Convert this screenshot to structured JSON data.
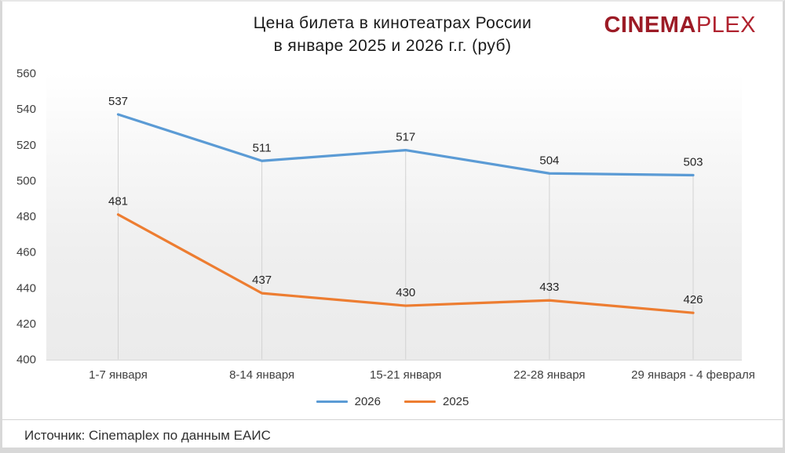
{
  "title": {
    "line1": "Цена билета в кинотеатрах России",
    "line2": "в январе 2025 и 2026 г.г. (руб)"
  },
  "logo": {
    "part1": "CINEMA",
    "part2": "PLEX",
    "color1": "#9c1b26",
    "color2": "#b0232f"
  },
  "source": "Источник: Cinemaplex по данным ЕАИС",
  "chart_data": {
    "type": "line",
    "title": "Цена билета в кинотеатрах России в январе 2025 и 2026 г.г. (руб)",
    "categories": [
      "1-7 января",
      "8-14 января",
      "15-21 января",
      "22-28 января",
      "29 января - 4 февраля"
    ],
    "series": [
      {
        "name": "2026",
        "color": "#5B9BD5",
        "values": [
          537,
          511,
          517,
          504,
          503
        ]
      },
      {
        "name": "2025",
        "color": "#ED7D31",
        "values": [
          481,
          437,
          430,
          433,
          426
        ]
      }
    ],
    "xlabel": "",
    "ylabel": "",
    "ylim": [
      400,
      560
    ],
    "yticks": [
      400,
      420,
      440,
      460,
      480,
      500,
      520,
      540,
      560
    ],
    "grid": "drop-lines-vertical",
    "data_labels": true,
    "legend_position": "bottom-center",
    "colors": {
      "tick_label": "#404040",
      "data_label": "#262626",
      "drop_line": "#d2d2d2"
    }
  }
}
